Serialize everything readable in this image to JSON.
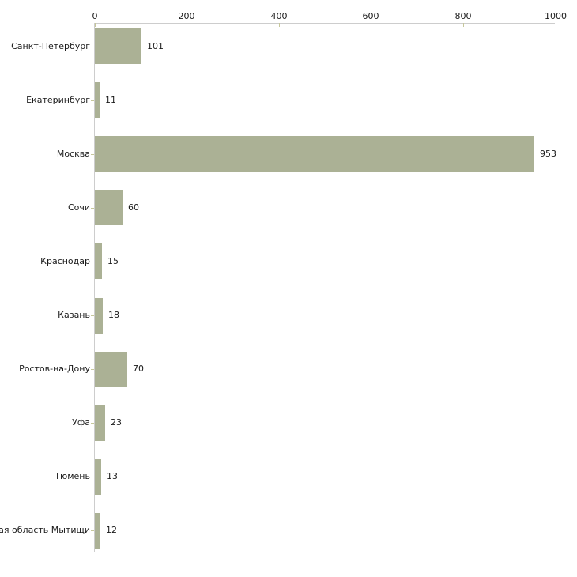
{
  "chart_data": {
    "type": "bar",
    "orientation": "horizontal",
    "title": "",
    "categories": [
      "Санкт-Петербург",
      "Екатеринбург",
      "Москва",
      "Сочи",
      "Краснодар",
      "Казань",
      "Ростов-на-Дону",
      "Уфа",
      "Тюмень",
      "Московская область Мытищи"
    ],
    "values": [
      101,
      11,
      953,
      60,
      15,
      18,
      70,
      23,
      13,
      12
    ],
    "value_labels": [
      "101",
      "11",
      "953",
      "60",
      "15",
      "18",
      "70",
      "23",
      "13",
      "12"
    ],
    "x_axis": {
      "position": "top",
      "range": [
        0,
        1000
      ],
      "ticks": [
        0,
        200,
        400,
        600,
        800,
        1000
      ],
      "tick_labels": [
        "0",
        "200",
        "400",
        "600",
        "800",
        "1000"
      ]
    },
    "y_axis": {
      "position": "left"
    },
    "grid": false,
    "legend": "none",
    "colors": {
      "bar": "#abb195",
      "axis_line": "#cdcdcd",
      "tick_mark": "#c6c79b",
      "text": "#1a1a1a",
      "background": "#ffffff"
    }
  }
}
